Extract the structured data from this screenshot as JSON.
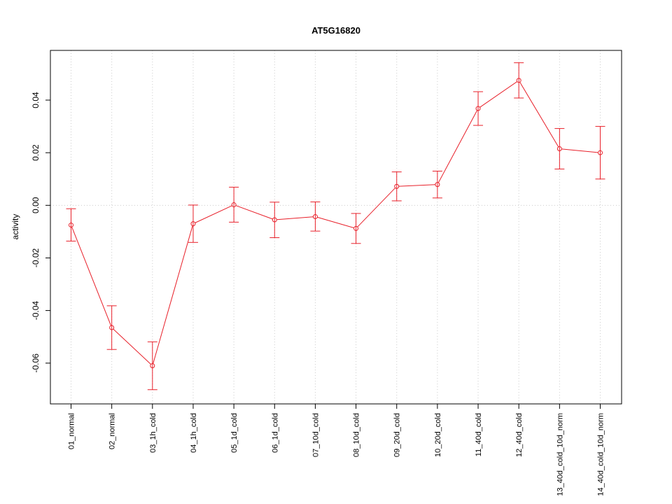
{
  "chart_data": {
    "type": "line",
    "title": "AT5G16820",
    "xlabel": "",
    "ylabel": "activity",
    "categories": [
      "01_normal",
      "02_normal",
      "03_1h_cold",
      "04_1h_cold",
      "05_1d_cold",
      "06_1d_cold",
      "07_10d_cold",
      "08_10d_cold",
      "09_20d_cold",
      "10_20d_cold",
      "11_40d_cold",
      "12_40d_cold",
      "13_40d_cold_10d_norm",
      "14_40d_cold_10d_norm"
    ],
    "series": [
      {
        "values": [
          -0.0075,
          -0.0465,
          -0.061,
          -0.007,
          0.0002,
          -0.0055,
          -0.0043,
          -0.0088,
          0.0072,
          0.0079,
          0.0368,
          0.0475,
          0.0215,
          0.02
        ],
        "err_low": [
          -0.0136,
          -0.0548,
          -0.0701,
          -0.0141,
          -0.0064,
          -0.0123,
          -0.0098,
          -0.0145,
          0.0017,
          0.0028,
          0.0304,
          0.0408,
          0.0138,
          0.01
        ],
        "err_high": [
          -0.0013,
          -0.0382,
          -0.0519,
          0.0001,
          0.0069,
          0.0012,
          0.0013,
          -0.0031,
          0.0127,
          0.013,
          0.0432,
          0.0542,
          0.0292,
          0.03
        ],
        "color": "#e8202a"
      }
    ],
    "yticks": [
      -0.06,
      -0.04,
      -0.02,
      0.0,
      0.02,
      0.04
    ],
    "ytick_labels": [
      "-0.06",
      "-0.04",
      "-0.02",
      "0.00",
      "0.02",
      "0.04"
    ],
    "ylim": [
      -0.0755,
      0.0589
    ],
    "grid": true,
    "colors": {
      "series": "#e8202a",
      "grid": "#cccccc",
      "axis": "#000000"
    }
  }
}
